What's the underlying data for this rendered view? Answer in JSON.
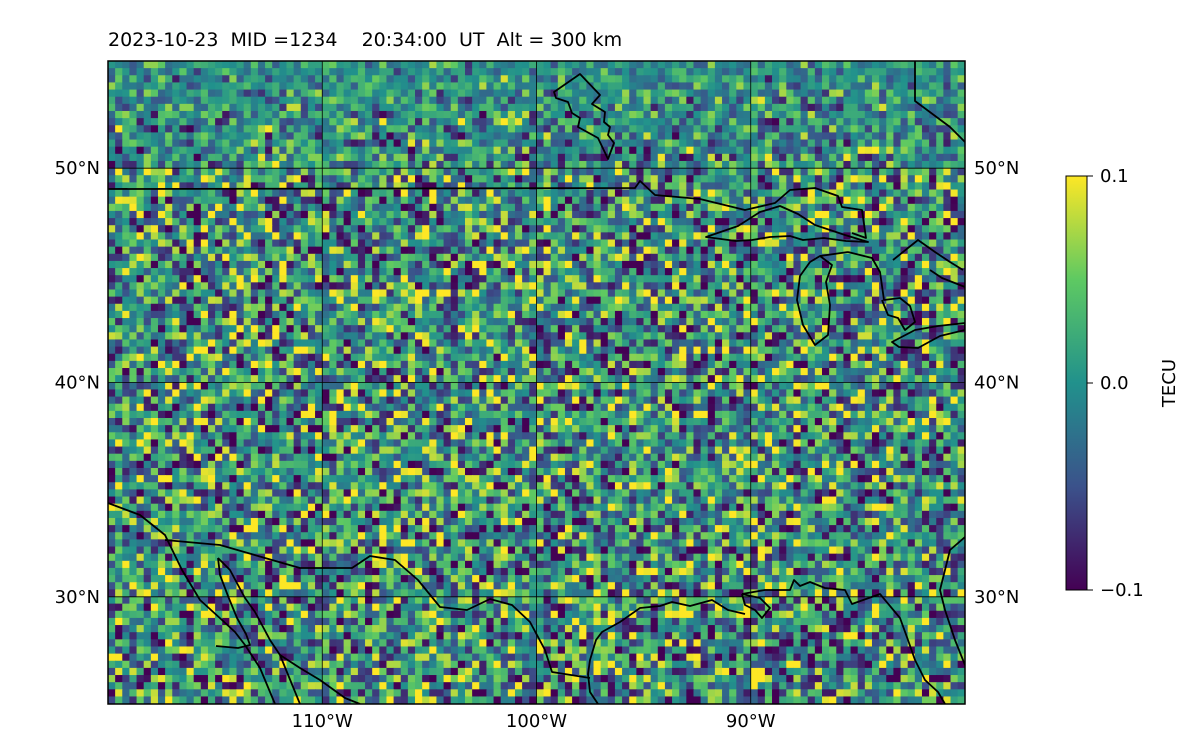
{
  "title": {
    "text": "2023-10-23  MID =1234    20:34:00  UT  Alt = 300 km"
  },
  "map": {
    "projection": "plate carree",
    "extent": {
      "lon_min": -120,
      "lon_max": -80,
      "lat_min": 25,
      "lat_max": 55
    },
    "gridlines": true,
    "field": "TEC perturbation",
    "field_range": [
      -0.1,
      0.1
    ],
    "colormap": "viridis",
    "coastlines": "black",
    "x_ticks": [
      {
        "value": -110,
        "label": "110°W"
      },
      {
        "value": -100,
        "label": "100°W"
      },
      {
        "value": -90,
        "label": "90°W"
      }
    ],
    "y_ticks": [
      {
        "value": 50,
        "label": "50°N"
      },
      {
        "value": 40,
        "label": "40°N"
      },
      {
        "value": 30,
        "label": "30°N"
      }
    ]
  },
  "colorbar": {
    "label": "TECU",
    "ticks": [
      {
        "value": 0.1,
        "label": "0.1"
      },
      {
        "value": 0.0,
        "label": "0.0"
      },
      {
        "value": -0.1,
        "label": "−0.1"
      }
    ],
    "colors": [
      "#440154",
      "#3b528b",
      "#21918c",
      "#5ec962",
      "#fde725"
    ]
  }
}
